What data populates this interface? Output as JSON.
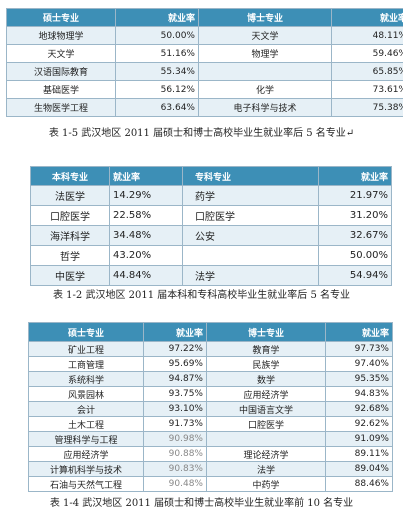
{
  "table1": {
    "headers": [
      "硕士专业",
      "就业率",
      "博士专业",
      "就业率"
    ],
    "rows": [
      [
        "地球物理学",
        "50.00%",
        "天文学",
        "48.11%"
      ],
      [
        "天文学",
        "51.16%",
        "物理学",
        "59.46%"
      ],
      [
        "汉语国际教育",
        "55.34%",
        "",
        "65.85%"
      ],
      [
        "基础医学",
        "56.12%",
        "化学",
        "73.61%"
      ],
      [
        "生物医学工程",
        "63.64%",
        "电子科学与技术",
        "75.38%"
      ]
    ],
    "caption": "表 1-5 武汉地区 2011 届硕士和博士高校毕业生就业率后 5 名专业↵"
  },
  "table2": {
    "headers": [
      "本科专业",
      "就业率",
      "专科专业",
      "就业率"
    ],
    "rows": [
      [
        "法医学",
        "14.29%",
        "药学",
        "21.97%"
      ],
      [
        "口腔医学",
        "22.58%",
        "口腔医学",
        "31.20%"
      ],
      [
        "海洋科学",
        "34.48%",
        "公安",
        "32.67%"
      ],
      [
        "哲学",
        "43.20%",
        "",
        "50.00%"
      ],
      [
        "中医学",
        "44.84%",
        "法学",
        "54.94%"
      ]
    ],
    "caption": "表 1-2 武汉地区 2011 届本科和专科高校毕业生就业率后 5 名专业"
  },
  "table3": {
    "headers": [
      "硕士专业",
      "就业率",
      "博士专业",
      "就业率"
    ],
    "rows": [
      [
        "矿业工程",
        "97.22%",
        "教育学",
        "97.73%"
      ],
      [
        "工商管理",
        "95.69%",
        "民族学",
        "97.40%"
      ],
      [
        "系统科学",
        "94.87%",
        "数学",
        "95.35%"
      ],
      [
        "风景园林",
        "93.75%",
        "应用经济学",
        "94.83%"
      ],
      [
        "会计",
        "93.10%",
        "中国语言文学",
        "92.68%"
      ],
      [
        "土木工程",
        "91.73%",
        "口腔医学",
        "92.62%"
      ],
      [
        "管理科学与工程",
        "90.98%",
        "",
        "91.09%"
      ],
      [
        "应用经济学",
        "90.88%",
        "理论经济学",
        "89.11%"
      ],
      [
        "计算机科学与技术",
        "90.83%",
        "法学",
        "89.04%"
      ],
      [
        "石油与天然气工程",
        "90.48%",
        "中药学",
        "88.46%"
      ]
    ],
    "caption": "表 1-4 武汉地区 2011 届硕士和博士高校毕业生就业率前 10 名专业"
  },
  "colors": {
    "header_bg": "#3d8fb6",
    "header_text": "#ffffff",
    "alt_row_bg": "#e6f0f6",
    "border": "#9bb6c8"
  }
}
